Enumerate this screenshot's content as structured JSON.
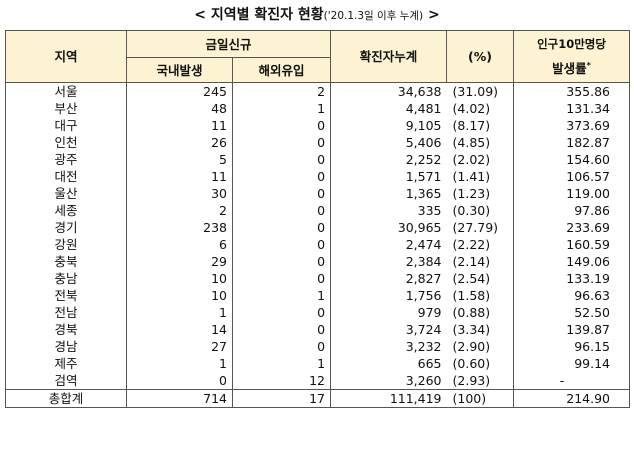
{
  "title": {
    "main": "< 지역별 확진자 현황",
    "sub": "('20.1.3일 이후 누계)",
    "close": " >"
  },
  "headers": {
    "region": "지역",
    "daily_new": "금일신규",
    "domestic": "국내발생",
    "imported": "해외유입",
    "cumulative": "확진자누계",
    "percent": "(%)",
    "rate_line1": "인구10만명당",
    "rate_line2": "발생률",
    "rate_mark": "*"
  },
  "rows": [
    {
      "region": "서울",
      "domestic": "245",
      "imported": "2",
      "cumulative": "34,638",
      "percent": "(31.09)",
      "rate": "355.86"
    },
    {
      "region": "부산",
      "domestic": "48",
      "imported": "1",
      "cumulative": "4,481",
      "percent": "(4.02)",
      "rate": "131.34"
    },
    {
      "region": "대구",
      "domestic": "11",
      "imported": "0",
      "cumulative": "9,105",
      "percent": "(8.17)",
      "rate": "373.69"
    },
    {
      "region": "인천",
      "domestic": "26",
      "imported": "0",
      "cumulative": "5,406",
      "percent": "(4.85)",
      "rate": "182.87"
    },
    {
      "region": "광주",
      "domestic": "5",
      "imported": "0",
      "cumulative": "2,252",
      "percent": "(2.02)",
      "rate": "154.60"
    },
    {
      "region": "대전",
      "domestic": "11",
      "imported": "0",
      "cumulative": "1,571",
      "percent": "(1.41)",
      "rate": "106.57"
    },
    {
      "region": "울산",
      "domestic": "30",
      "imported": "0",
      "cumulative": "1,365",
      "percent": "(1.23)",
      "rate": "119.00"
    },
    {
      "region": "세종",
      "domestic": "2",
      "imported": "0",
      "cumulative": "335",
      "percent": "(0.30)",
      "rate": "97.86"
    },
    {
      "region": "경기",
      "domestic": "238",
      "imported": "0",
      "cumulative": "30,965",
      "percent": "(27.79)",
      "rate": "233.69"
    },
    {
      "region": "강원",
      "domestic": "6",
      "imported": "0",
      "cumulative": "2,474",
      "percent": "(2.22)",
      "rate": "160.59"
    },
    {
      "region": "충북",
      "domestic": "29",
      "imported": "0",
      "cumulative": "2,384",
      "percent": "(2.14)",
      "rate": "149.06"
    },
    {
      "region": "충남",
      "domestic": "10",
      "imported": "0",
      "cumulative": "2,827",
      "percent": "(2.54)",
      "rate": "133.19"
    },
    {
      "region": "전북",
      "domestic": "10",
      "imported": "1",
      "cumulative": "1,756",
      "percent": "(1.58)",
      "rate": "96.63"
    },
    {
      "region": "전남",
      "domestic": "1",
      "imported": "0",
      "cumulative": "979",
      "percent": "(0.88)",
      "rate": "52.50"
    },
    {
      "region": "경북",
      "domestic": "14",
      "imported": "0",
      "cumulative": "3,724",
      "percent": "(3.34)",
      "rate": "139.87"
    },
    {
      "region": "경남",
      "domestic": "27",
      "imported": "0",
      "cumulative": "3,232",
      "percent": "(2.90)",
      "rate": "96.15"
    },
    {
      "region": "제주",
      "domestic": "1",
      "imported": "1",
      "cumulative": "665",
      "percent": "(0.60)",
      "rate": "99.14"
    },
    {
      "region": "검역",
      "domestic": "0",
      "imported": "12",
      "cumulative": "3,260",
      "percent": "(2.93)",
      "rate": "-"
    },
    {
      "region": "총합계",
      "domestic": "714",
      "imported": "17",
      "cumulative": "111,419",
      "percent": "(100)",
      "rate": "214.90"
    }
  ],
  "colors": {
    "header_bg": "#fdf3d2",
    "border": "#555555"
  }
}
